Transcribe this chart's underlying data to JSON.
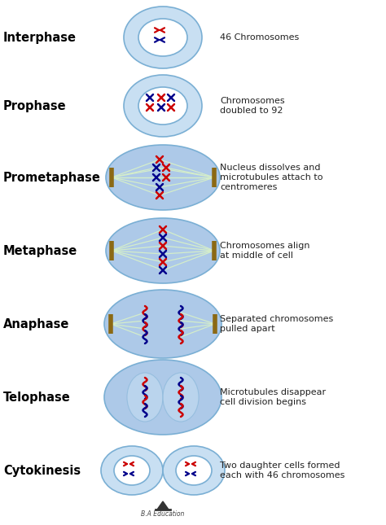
{
  "background_color": "#ffffff",
  "cell_color": "#adc9e8",
  "cell_color_light": "#c8dff2",
  "nucleus_color": "#ffffff",
  "cell_border_color": "#7aafd4",
  "blue_chr": "#00008B",
  "red_chr": "#cc0000",
  "spindle_color": "#d4edca",
  "pole_color": "#8B6914",
  "stages": [
    {
      "name": "Interphase",
      "desc": "46 Chromosomes"
    },
    {
      "name": "Prophase",
      "desc": "Chromosomes\ndoubled to 92"
    },
    {
      "name": "Prometaphase",
      "desc": "Nucleus dissolves and\nmicrotubules attach to\ncentromeres"
    },
    {
      "name": "Metaphase",
      "desc": "Chromosomes align\nat middle of cell"
    },
    {
      "name": "Anaphase",
      "desc": "Separated chromosomes\npulled apart"
    },
    {
      "name": "Telophase",
      "desc": "Microtubules disappear\ncell division begins"
    },
    {
      "name": "Cytokinesis",
      "desc": "Two daughter cells formed\neach with 46 chromosomes"
    }
  ]
}
